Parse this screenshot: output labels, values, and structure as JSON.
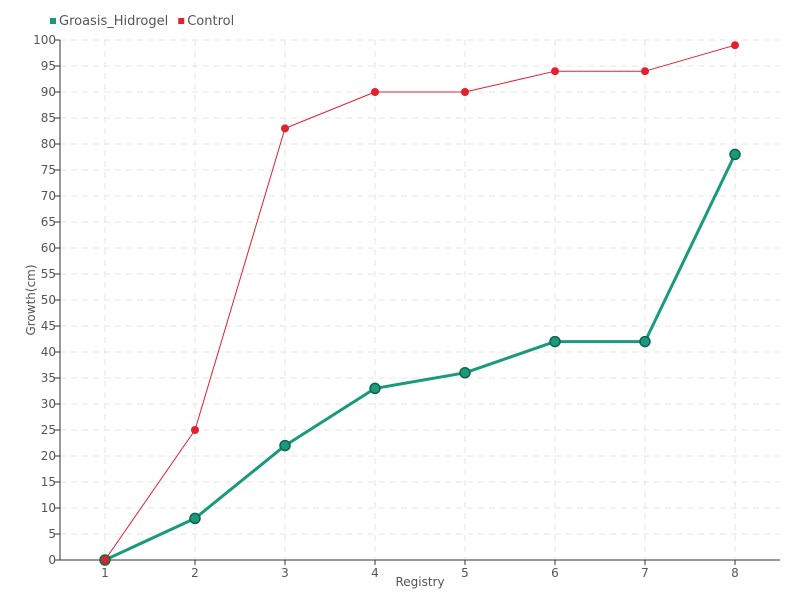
{
  "chart_data": {
    "type": "line",
    "x": [
      1,
      2,
      3,
      4,
      5,
      6,
      7,
      8
    ],
    "series": [
      {
        "name": "Groasis_Hidrogel",
        "color": "#1a9a7c",
        "values": [
          0,
          8,
          22,
          33,
          36,
          42,
          42,
          78
        ]
      },
      {
        "name": "Control",
        "color": "#e3202e",
        "values": [
          0,
          25,
          83,
          90,
          90,
          94,
          94,
          99
        ]
      }
    ],
    "xlabel": "Registry",
    "ylabel": "Growth(cm)",
    "xlim": [
      1,
      8
    ],
    "ylim": [
      0,
      100
    ],
    "ytick_step": 5,
    "grid": true,
    "legend_position": "top-left"
  }
}
